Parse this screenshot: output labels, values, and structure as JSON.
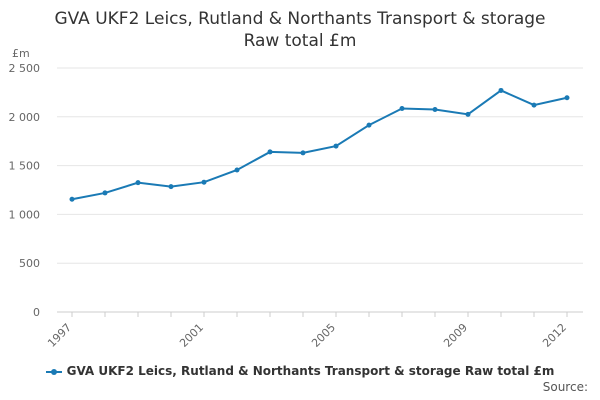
{
  "title_line1": "GVA UKF2 Leics, Rutland & Northants Transport & storage",
  "title_line2": "Raw total £m",
  "source_label": "Source:",
  "colors": {
    "series": "#1a7ab5",
    "grid": "#e6e6e6",
    "axis_text": "#666666"
  },
  "chart_data": {
    "type": "line",
    "title": "GVA UKF2 Leics, Rutland & Northants Transport & storage Raw total £m",
    "ylabel": "£m",
    "xlabel": "",
    "x": [
      1997,
      1998,
      1999,
      2000,
      2001,
      2002,
      2003,
      2004,
      2005,
      2006,
      2007,
      2008,
      2009,
      2010,
      2011,
      2012
    ],
    "x_ticks": [
      "1997",
      "2001",
      "2005",
      "2009",
      "2012"
    ],
    "y_ticks": [
      "0",
      "500",
      "1 000",
      "1 500",
      "2 000",
      "2 500"
    ],
    "ylim": [
      0,
      2500
    ],
    "grid": true,
    "legend_position": "bottom",
    "series": [
      {
        "name": "GVA UKF2 Leics, Rutland & Northants Transport & storage Raw total £m",
        "values": [
          1155,
          1220,
          1325,
          1285,
          1330,
          1455,
          1640,
          1630,
          1700,
          1915,
          2085,
          2075,
          2025,
          2270,
          2120,
          2195
        ]
      }
    ]
  }
}
